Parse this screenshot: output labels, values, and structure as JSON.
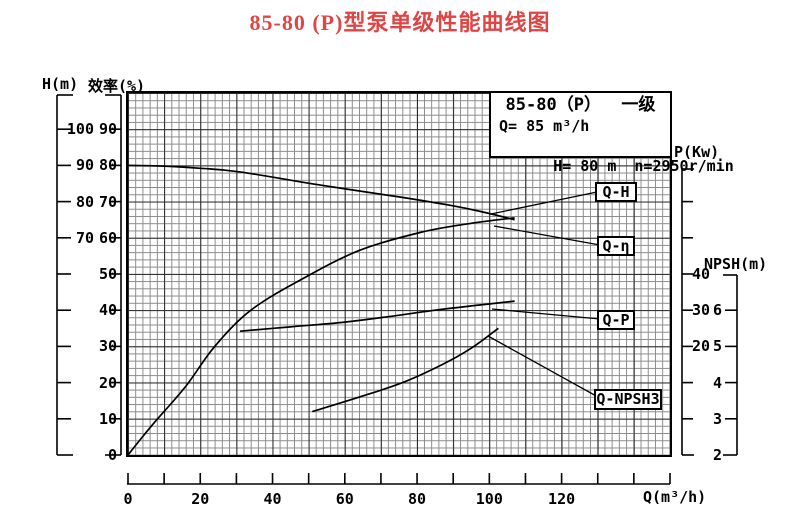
{
  "title": "85-80 (P)型泵单级性能曲线图",
  "colors": {
    "title_red": "#e04545",
    "ink": "#000000",
    "grid_minor": "#8a8a8a",
    "grid_major": "#2a2a2a"
  },
  "legend": {
    "model_line": "85-80（P）  一级",
    "q_line": "Q= 85 m³/h",
    "h_line": "H= 80 m",
    "n_line": "n=2950r/min"
  },
  "axes": {
    "h": {
      "title": "H(m)",
      "ticks": [
        "100",
        "90",
        "80",
        "70"
      ]
    },
    "eff": {
      "title": "效率(%)",
      "ticks": [
        "90",
        "80",
        "70",
        "60",
        "50",
        "40",
        "30",
        "20",
        "10",
        "0"
      ]
    },
    "p": {
      "title": "P(Kw)",
      "ticks": [
        "40",
        "30",
        "20"
      ]
    },
    "npsh": {
      "title": "NPSH(m)",
      "ticks": [
        "6",
        "5",
        "4",
        "3",
        "2"
      ]
    },
    "q": {
      "title": "Q(m³/h)",
      "ticks": [
        "0",
        "20",
        "40",
        "60",
        "80",
        "100",
        "120"
      ]
    }
  },
  "curve_labels": {
    "qh": "Q-H",
    "qeta": "Q-η",
    "qp": "Q-P",
    "qnpsh": "Q-NPSH3"
  },
  "chart_data": {
    "type": "line",
    "title": "85-80 (P)型泵单级性能曲线图",
    "xlabel": "Q(m³/h)",
    "x_range": [
      0,
      150
    ],
    "x_minor_tick": 2,
    "x_major_tick": 10,
    "x_labeled_every": 20,
    "grid": "on",
    "y_axes": {
      "H": {
        "label": "H(m)",
        "labeled_ticks": [
          70,
          80,
          90,
          100
        ]
      },
      "eff": {
        "label": "效率(%)",
        "range": [
          0,
          100
        ],
        "labeled_ticks": [
          0,
          10,
          20,
          30,
          40,
          50,
          60,
          70,
          80,
          90
        ]
      },
      "P": {
        "label": "P(Kw)",
        "labeled_ticks": [
          20,
          30,
          40
        ]
      },
      "NPSH": {
        "label": "NPSH(m)",
        "labeled_ticks": [
          2,
          3,
          4,
          5,
          6
        ]
      }
    },
    "rated_point": {
      "Q": 85,
      "H": 80,
      "n": "2950r/min",
      "stage": "一级"
    },
    "series": [
      {
        "name": "Q-H",
        "axis": "H",
        "points": [
          [
            0,
            90
          ],
          [
            10,
            89.8
          ],
          [
            20,
            89.2
          ],
          [
            31,
            88.2
          ],
          [
            53,
            84.6
          ],
          [
            75,
            81.3
          ],
          [
            89,
            79
          ],
          [
            97,
            77.4
          ],
          [
            107,
            75
          ]
        ]
      },
      {
        "name": "Q-η",
        "axis": "eff",
        "points": [
          [
            0,
            0
          ],
          [
            4,
            5
          ],
          [
            7.5,
            9.2
          ],
          [
            16,
            19
          ],
          [
            24,
            30
          ],
          [
            34,
            40
          ],
          [
            48,
            48.5
          ],
          [
            64,
            56.5
          ],
          [
            81,
            61.5
          ],
          [
            95,
            64
          ],
          [
            107,
            65.5
          ]
        ]
      },
      {
        "name": "Q-P",
        "axis": "P",
        "points": [
          [
            31,
            24.2
          ],
          [
            45,
            25.4
          ],
          [
            59,
            26.6
          ],
          [
            72,
            28.2
          ],
          [
            85,
            30
          ],
          [
            97,
            31.4
          ],
          [
            107,
            32.5
          ]
        ]
      },
      {
        "name": "Q-NPSH3",
        "axis": "NPSH",
        "points": [
          [
            51,
            3.2
          ],
          [
            64,
            3.6
          ],
          [
            76,
            4.0
          ],
          [
            87,
            4.5
          ],
          [
            95,
            4.95
          ],
          [
            102.5,
            5.5
          ]
        ]
      }
    ]
  }
}
